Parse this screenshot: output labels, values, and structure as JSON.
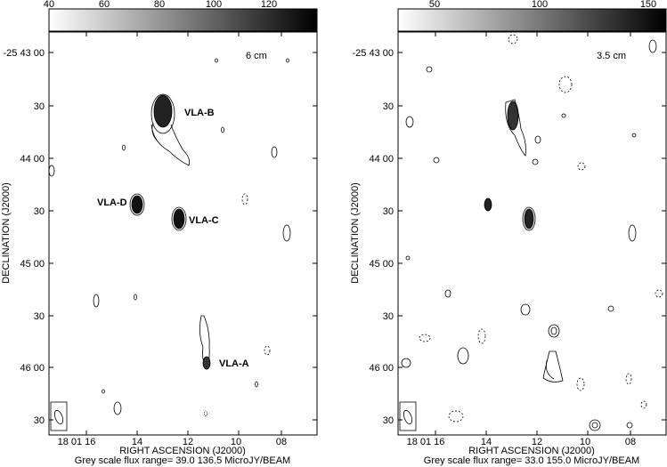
{
  "panels": [
    {
      "band_label": "6 cm",
      "xlabel": "RIGHT ASCENSION (J2000)",
      "ylabel": "DECLINATION (J2000)",
      "footer": "Grey scale flux range=    39.0   136.5 MicroJY/BEAM",
      "colorbar_ticks": [
        "40",
        "60",
        "80",
        "100",
        "120"
      ],
      "yticks": [
        "-25 43 00",
        "30",
        "44 00",
        "30",
        "45 00",
        "30",
        "46 00",
        "30"
      ],
      "xticks": [
        "18 01 16",
        "14",
        "12",
        "10",
        "08"
      ],
      "sources": [
        "VLA-B",
        "VLA-D",
        "VLA-C",
        "VLA-A"
      ]
    },
    {
      "band_label": "3.5 cm",
      "xlabel": "RIGHT ASCENSION (J2000)",
      "ylabel": "DECLINATION (J2000)",
      "footer": "Grey scale flux range=    33.0   155.0 MicroJY/BEAM",
      "colorbar_ticks": [
        "50",
        "100",
        "150"
      ],
      "yticks": [
        "-25 43 00",
        "30",
        "44 00",
        "30",
        "45 00",
        "30",
        "46 00",
        "30"
      ],
      "xticks": [
        "18 01 16",
        "14",
        "12",
        "10",
        "08"
      ],
      "sources": []
    }
  ],
  "chart_data": [
    {
      "type": "heatmap",
      "title": "6 cm",
      "xlabel": "RIGHT ASCENSION (J2000)",
      "ylabel": "DECLINATION (J2000)",
      "x_ticks": [
        "18 01 16",
        "14",
        "12",
        "10",
        "08"
      ],
      "y_ticks": [
        "-25 43 00",
        "30",
        "44 00",
        "30",
        "45 00",
        "30",
        "46 00",
        "30"
      ],
      "greyscale_range": [
        39.0,
        136.5
      ],
      "greyscale_unit": "MicroJY/BEAM",
      "colorbar_ticks": [
        40,
        60,
        80,
        100,
        120
      ],
      "sources": [
        "VLA-B",
        "VLA-D",
        "VLA-C",
        "VLA-A"
      ]
    },
    {
      "type": "heatmap",
      "title": "3.5 cm",
      "xlabel": "RIGHT ASCENSION (J2000)",
      "ylabel": "DECLINATION (J2000)",
      "x_ticks": [
        "18 01 16",
        "14",
        "12",
        "10",
        "08"
      ],
      "y_ticks": [
        "-25 43 00",
        "30",
        "44 00",
        "30",
        "45 00",
        "30",
        "46 00",
        "30"
      ],
      "greyscale_range": [
        33.0,
        155.0
      ],
      "greyscale_unit": "MicroJY/BEAM",
      "colorbar_ticks": [
        50,
        100,
        150
      ]
    }
  ]
}
